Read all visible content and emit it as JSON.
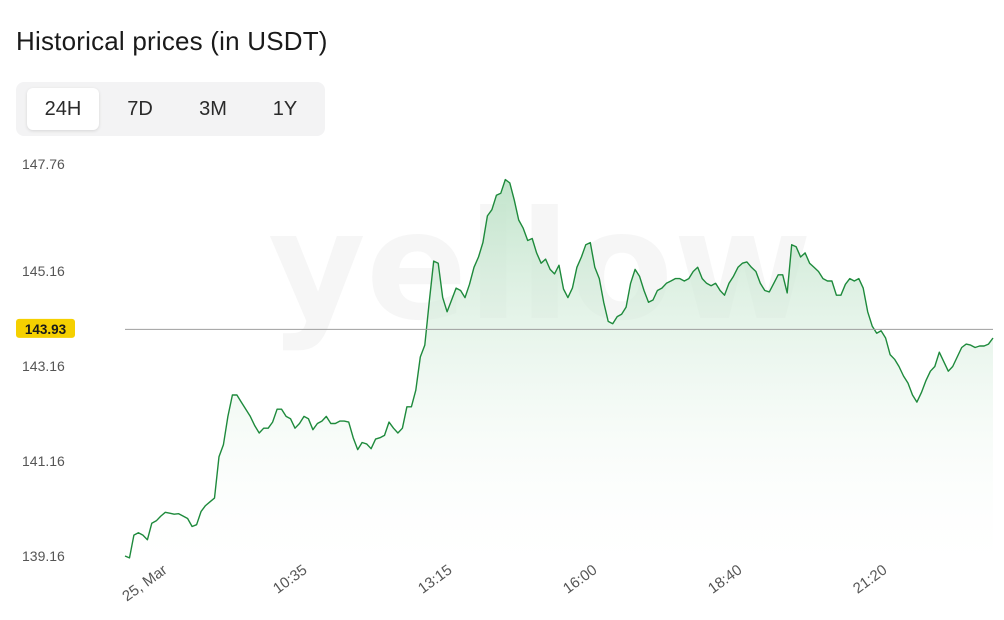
{
  "title": "Historical prices (in USDT)",
  "tabs": [
    {
      "label": "24H",
      "active": true
    },
    {
      "label": "7D",
      "active": false
    },
    {
      "label": "3M",
      "active": false
    },
    {
      "label": "1Y",
      "active": false
    }
  ],
  "watermark": "yellow",
  "colors": {
    "line": "#1e8a3c",
    "area_top": "#bfe3c9",
    "current_badge": "#f5d000",
    "reference_line": "#9e9e9e"
  },
  "chart_data": {
    "type": "area",
    "y_ticks": [
      "147.76",
      "145.16",
      "143.16",
      "141.16",
      "139.16"
    ],
    "current_price": "143.93",
    "x_tick_labels": [
      "25, Mar",
      "10:35",
      "13:15",
      "16:00",
      "18:40",
      "21:20"
    ],
    "ylim": [
      139.16,
      147.76
    ],
    "grid": false,
    "series": [
      {
        "values": [
          139.16,
          139.12,
          139.6,
          139.65,
          139.6,
          139.5,
          139.85,
          139.9,
          140.0,
          140.08,
          140.06,
          140.04,
          140.05,
          140.0,
          139.95,
          139.78,
          139.82,
          140.1,
          140.22,
          140.3,
          140.38,
          141.25,
          141.5,
          142.1,
          142.55,
          142.55,
          142.4,
          142.25,
          142.1,
          141.9,
          141.75,
          141.85,
          141.85,
          141.98,
          142.25,
          142.25,
          142.1,
          142.05,
          141.85,
          141.95,
          142.1,
          142.05,
          141.82,
          141.95,
          142.0,
          142.1,
          141.95,
          141.95,
          142.0,
          142.0,
          141.98,
          141.65,
          141.4,
          141.55,
          141.52,
          141.42,
          141.62,
          141.65,
          141.7,
          141.98,
          141.85,
          141.75,
          141.85,
          142.3,
          142.3,
          142.65,
          143.35,
          143.6,
          144.5,
          145.4,
          145.35,
          144.6,
          144.3,
          144.55,
          144.8,
          144.75,
          144.6,
          144.88,
          145.25,
          145.5,
          145.85,
          146.5,
          146.65,
          147.0,
          147.05,
          147.38,
          147.3,
          146.88,
          146.4,
          146.2,
          145.9,
          145.95,
          145.6,
          145.35,
          145.45,
          145.2,
          145.1,
          145.3,
          144.78,
          144.6,
          144.8,
          145.25,
          145.5,
          145.8,
          145.85,
          145.25,
          145.0,
          144.5,
          144.1,
          144.05,
          144.2,
          144.25,
          144.4,
          144.9,
          145.2,
          145.05,
          144.75,
          144.5,
          144.55,
          144.75,
          144.8,
          144.9,
          144.95,
          145.0,
          145.0,
          144.95,
          145.0,
          145.15,
          145.25,
          145.0,
          144.9,
          144.85,
          144.9,
          144.75,
          144.65,
          144.9,
          145.05,
          145.25,
          145.35,
          145.38,
          145.25,
          145.15,
          144.9,
          144.75,
          144.72,
          144.9,
          145.08,
          145.08,
          144.7,
          145.8,
          145.75,
          145.5,
          145.6,
          145.35,
          145.25,
          145.15,
          145.0,
          144.95,
          144.95,
          144.65,
          144.65,
          144.88,
          145.0,
          144.95,
          145.0,
          144.8,
          144.3,
          144.0,
          143.85,
          143.9,
          143.75,
          143.4,
          143.3,
          143.15,
          142.95,
          142.8,
          142.55,
          142.4,
          142.6,
          142.85,
          143.05,
          143.15,
          143.45,
          143.25,
          143.05,
          143.15,
          143.35,
          143.55,
          143.62,
          143.6,
          143.55,
          143.58,
          143.58,
          143.62,
          143.75
        ]
      }
    ]
  }
}
